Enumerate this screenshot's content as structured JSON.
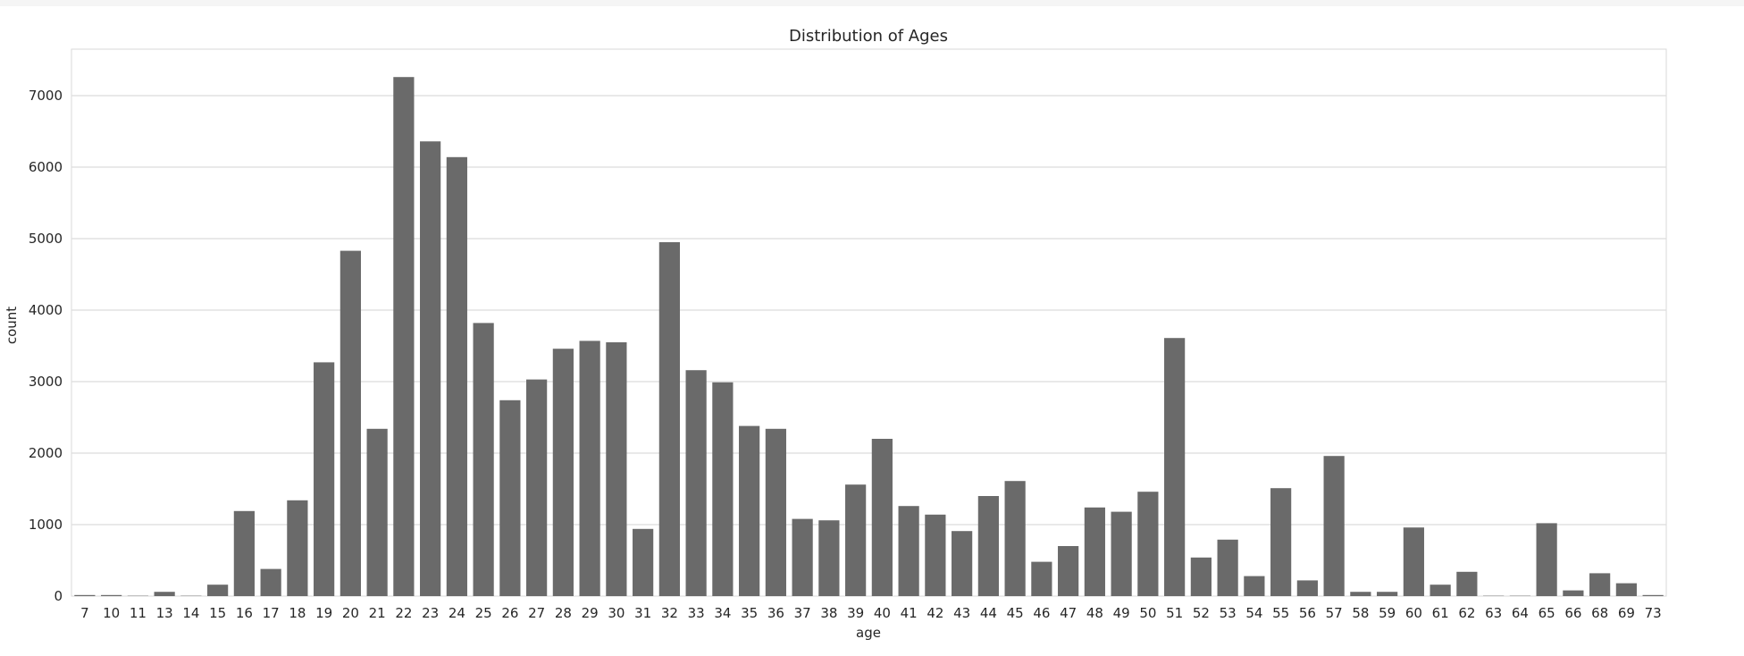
{
  "chart_data": {
    "type": "bar",
    "title": "Distribution of Ages",
    "xlabel": "age",
    "ylabel": "count",
    "ylim": [
      0,
      7650
    ],
    "yticks": [
      0,
      1000,
      2000,
      3000,
      4000,
      5000,
      6000,
      7000
    ],
    "grid": true,
    "bar_color": "#6a6a6a",
    "categories": [
      "7",
      "10",
      "11",
      "13",
      "14",
      "15",
      "16",
      "17",
      "18",
      "19",
      "20",
      "21",
      "22",
      "23",
      "24",
      "25",
      "26",
      "27",
      "28",
      "29",
      "30",
      "31",
      "32",
      "33",
      "34",
      "35",
      "36",
      "37",
      "38",
      "39",
      "40",
      "41",
      "42",
      "43",
      "44",
      "45",
      "46",
      "47",
      "48",
      "49",
      "50",
      "51",
      "52",
      "53",
      "54",
      "55",
      "56",
      "57",
      "58",
      "59",
      "60",
      "61",
      "62",
      "63",
      "64",
      "65",
      "66",
      "68",
      "69",
      "73"
    ],
    "values": [
      15,
      15,
      5,
      60,
      5,
      160,
      1190,
      380,
      1340,
      3270,
      4830,
      2340,
      7260,
      6360,
      6140,
      3820,
      2740,
      3030,
      3460,
      3570,
      3550,
      940,
      4950,
      3160,
      2990,
      2380,
      2340,
      1080,
      1060,
      1560,
      2200,
      1260,
      1140,
      910,
      1400,
      1610,
      480,
      700,
      1240,
      1180,
      1460,
      3610,
      540,
      790,
      280,
      1510,
      220,
      1960,
      60,
      60,
      960,
      160,
      340,
      5,
      5,
      1020,
      80,
      320,
      180,
      15
    ]
  }
}
